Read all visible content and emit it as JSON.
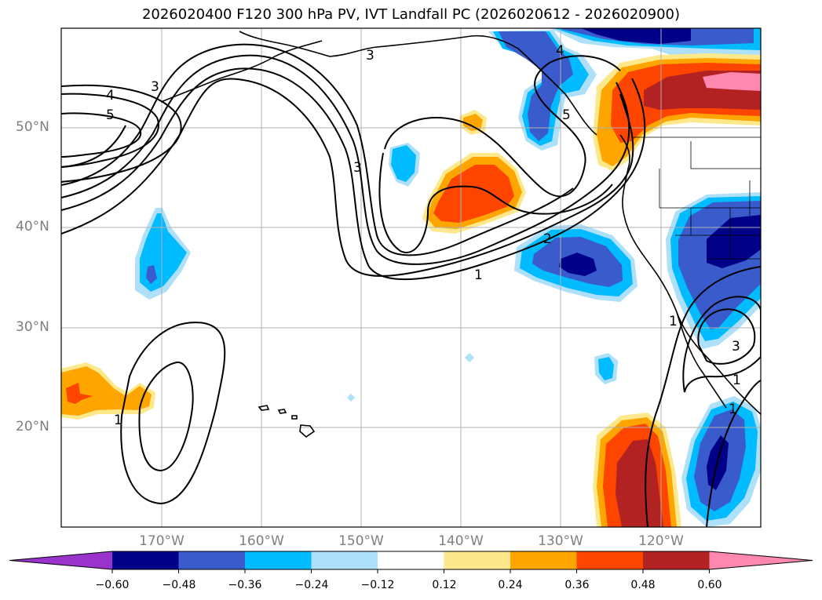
{
  "title": "2026020400 F120 300 hPa PV, IVT Landfall PC (2026020612 - 2026020900)",
  "map": {
    "lat_labels": [
      "50°N",
      "40°N",
      "30°N",
      "20°N"
    ],
    "lon_labels": [
      "170°W",
      "160°W",
      "150°W",
      "140°W",
      "130°W",
      "120°W"
    ],
    "contour_labels": [
      "3",
      "4",
      "5",
      "3",
      "4",
      "5",
      "3",
      "2",
      "1",
      "1",
      "1",
      "1",
      "3",
      "1"
    ],
    "shading_colors": {
      "pos_light": "#fde98b",
      "pos_mid": "#fea500",
      "pos_strong": "#fe4500",
      "pos_stronger": "#b22222",
      "pos_max": "#ff88b0",
      "neg_light": "#aee0fa",
      "neg_mid": "#00bbff",
      "neg_strong": "#3a5bcc",
      "neg_stronger": "#000088",
      "neg_max": "#9933cc"
    }
  },
  "colorbar": {
    "ticks": [
      "−0.60",
      "−0.48",
      "−0.36",
      "−0.24",
      "−0.12",
      "0.12",
      "0.24",
      "0.36",
      "0.48",
      "0.60"
    ],
    "colors": [
      "#9933cc",
      "#000088",
      "#3a5bcc",
      "#00bbff",
      "#aee0fa",
      "#ffffff",
      "#fde98b",
      "#fea500",
      "#fe4500",
      "#b22222",
      "#ff88b0"
    ]
  }
}
